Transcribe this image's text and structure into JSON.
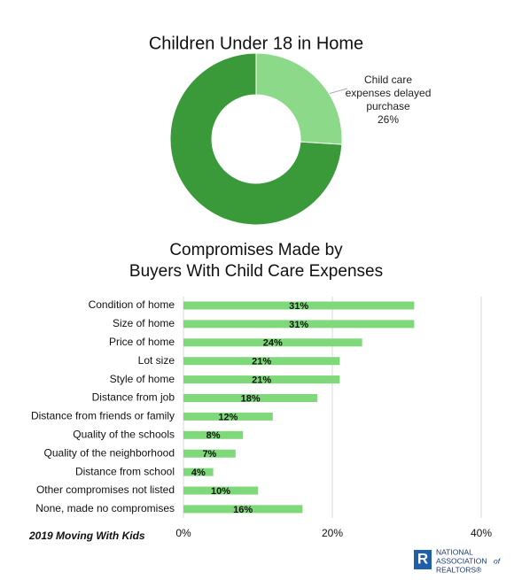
{
  "chart_data": [
    {
      "type": "donut",
      "title": "Children Under 18 in Home",
      "categories": [
        "Child care expenses delayed purchase",
        null
      ],
      "values": [
        26,
        74
      ],
      "value_labels": [
        "26%",
        null
      ],
      "colors": [
        "#8dd98a",
        "#3a9a3a"
      ]
    },
    {
      "type": "hbar",
      "title": [
        "Compromises Made by",
        "Buyers With Child Care Expenses"
      ],
      "categories": [
        "Condition of home",
        "Size of home",
        "Price of home",
        "Lot size",
        "Style of home",
        "Distance from job",
        "Distance from friends or family",
        "Quality of the schools",
        "Quality of the neighborhood",
        "Distance from school",
        "Other compromises not listed",
        "None, made no compromises"
      ],
      "values": [
        31,
        31,
        24,
        21,
        21,
        18,
        12,
        8,
        7,
        4,
        10,
        16
      ],
      "value_labels": [
        "31%",
        "31%",
        "24%",
        "21%",
        "21%",
        "18%",
        "12%",
        "8%",
        "7%",
        "4%",
        "10%",
        "16%"
      ],
      "color": "#7fd97a",
      "xlim": [
        0,
        40
      ],
      "xticks": [
        {
          "value": 0,
          "label": "0%"
        },
        {
          "value": 20,
          "label": "20%"
        },
        {
          "value": 40,
          "label": "40%"
        }
      ],
      "grid": true
    }
  ],
  "footer": "2019 Moving With Kids",
  "logo": [
    "NATIONAL",
    "ASSOCIATION",
    "of",
    "REALTORS®"
  ]
}
